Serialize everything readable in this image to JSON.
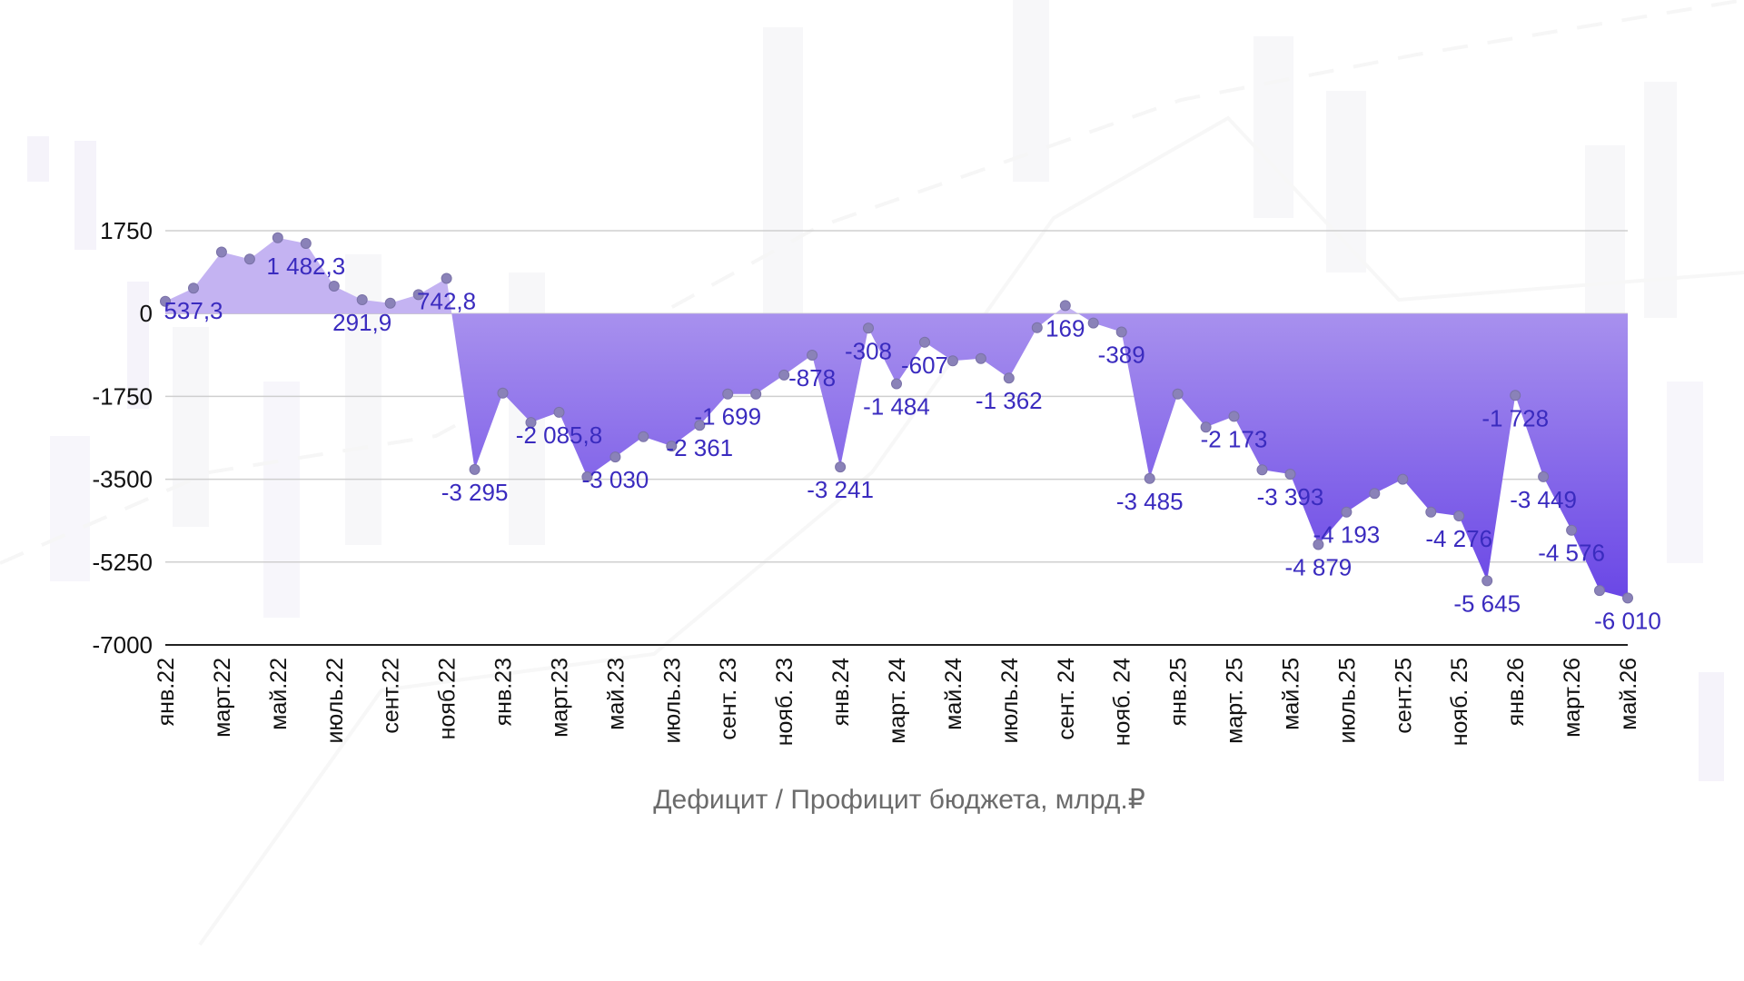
{
  "chart_data": {
    "type": "area",
    "title": "Дефицит / Профицит бюджета, млрд.₽",
    "xlabel": "",
    "ylabel": "",
    "ylim": [
      -7000,
      1750
    ],
    "yticks": [
      1750,
      0,
      -1750,
      -3500,
      -5250,
      -7000
    ],
    "yticks_labels": [
      "1750",
      "0",
      "-1750",
      "-3500",
      "-5250",
      "-7000"
    ],
    "grid": true,
    "legend": "none",
    "x_tick_labels": [
      {
        "i": 2,
        "label": "март.22"
      },
      {
        "i": 4,
        "label": "май.22"
      },
      {
        "i": 6,
        "label": "июль.22"
      },
      {
        "i": 8,
        "label": "сент.22"
      },
      {
        "i": 10,
        "label": "нояб.22"
      },
      {
        "i": 12,
        "label": "янв.23"
      },
      {
        "i": 14,
        "label": "март.23"
      },
      {
        "i": 16,
        "label": "май.23"
      },
      {
        "i": 18,
        "label": "июль.23"
      },
      {
        "i": 20,
        "label": "сент. 23"
      },
      {
        "i": 22,
        "label": "нояб. 23"
      },
      {
        "i": 24,
        "label": "янв.24"
      },
      {
        "i": 26,
        "label": "март. 24"
      },
      {
        "i": 28,
        "label": "май.24"
      },
      {
        "i": 30,
        "label": "июль.24"
      },
      {
        "i": 32,
        "label": "сент. 24"
      },
      {
        "i": 34,
        "label": "нояб. 24"
      },
      {
        "i": 36,
        "label": "янв.25"
      },
      {
        "i": 38,
        "label": "март. 25"
      },
      {
        "i": 40,
        "label": "май.25"
      },
      {
        "i": 42,
        "label": "июль.25"
      },
      {
        "i": 44,
        "label": "сент.25"
      },
      {
        "i": 46,
        "label": "нояб. 25"
      },
      {
        "i": 48,
        "label": "янв.26"
      },
      {
        "i": 50,
        "label": "март.26"
      },
      {
        "i": 52,
        "label": "май.26"
      },
      {
        "i": 0,
        "label": "янв.22"
      }
    ],
    "values": [
      260,
      537.3,
      1300,
      1150,
      1600,
      1482.3,
      580,
      291.9,
      220,
      400,
      742.8,
      -3295,
      -1680,
      -2300,
      -2085.8,
      -3450,
      -3030,
      -2600,
      -2800,
      -2361,
      -1699,
      -1700,
      -1300,
      -878,
      -3241,
      -308,
      -1484,
      -607,
      -1000,
      -950,
      -1362,
      -300,
      169,
      -200,
      -389,
      -3485,
      -1700,
      -2400,
      -2173,
      -3300,
      -3393,
      -4879,
      -4193,
      -3800,
      -3500,
      -4193,
      -4276,
      -5645,
      -1728,
      -3449,
      -4576,
      -5850,
      -6010
    ],
    "data_labels": [
      {
        "i": 1,
        "text": "537,3"
      },
      {
        "i": 5,
        "text": "1 482,3"
      },
      {
        "i": 7,
        "text": "291,9"
      },
      {
        "i": 10,
        "text": "742,8"
      },
      {
        "i": 11,
        "text": "-3 295"
      },
      {
        "i": 14,
        "text": "-2 085,8"
      },
      {
        "i": 16,
        "text": "-3 030"
      },
      {
        "i": 19,
        "text": "-2 361"
      },
      {
        "i": 20,
        "text": "-1 699"
      },
      {
        "i": 23,
        "text": "-878"
      },
      {
        "i": 24,
        "text": "-3 241"
      },
      {
        "i": 25,
        "text": "-308"
      },
      {
        "i": 26,
        "text": "-1 484"
      },
      {
        "i": 27,
        "text": "-607"
      },
      {
        "i": 30,
        "text": "-1 362"
      },
      {
        "i": 32,
        "text": "169"
      },
      {
        "i": 34,
        "text": "-389"
      },
      {
        "i": 35,
        "text": "-3 485"
      },
      {
        "i": 38,
        "text": "-2 173"
      },
      {
        "i": 40,
        "text": "-3 393"
      },
      {
        "i": 41,
        "text": "-4 879"
      },
      {
        "i": 42,
        "text": "-4 193"
      },
      {
        "i": 46,
        "text": "-4 276"
      },
      {
        "i": 47,
        "text": "-5 645"
      },
      {
        "i": 48,
        "text": "-1 728"
      },
      {
        "i": 49,
        "text": "-3 449"
      },
      {
        "i": 50,
        "text": "-4 576"
      },
      {
        "i": 52,
        "text": "-6 010"
      }
    ],
    "colors": {
      "positive_fill": "#c4b3f2",
      "negative_fill_top": "#b8a4f0",
      "negative_fill_bottom": "#6a47e6",
      "marker": "#8a82b8",
      "label": "#3a2bbf",
      "grid": "#cfcfcf",
      "axis": "#222222"
    }
  }
}
